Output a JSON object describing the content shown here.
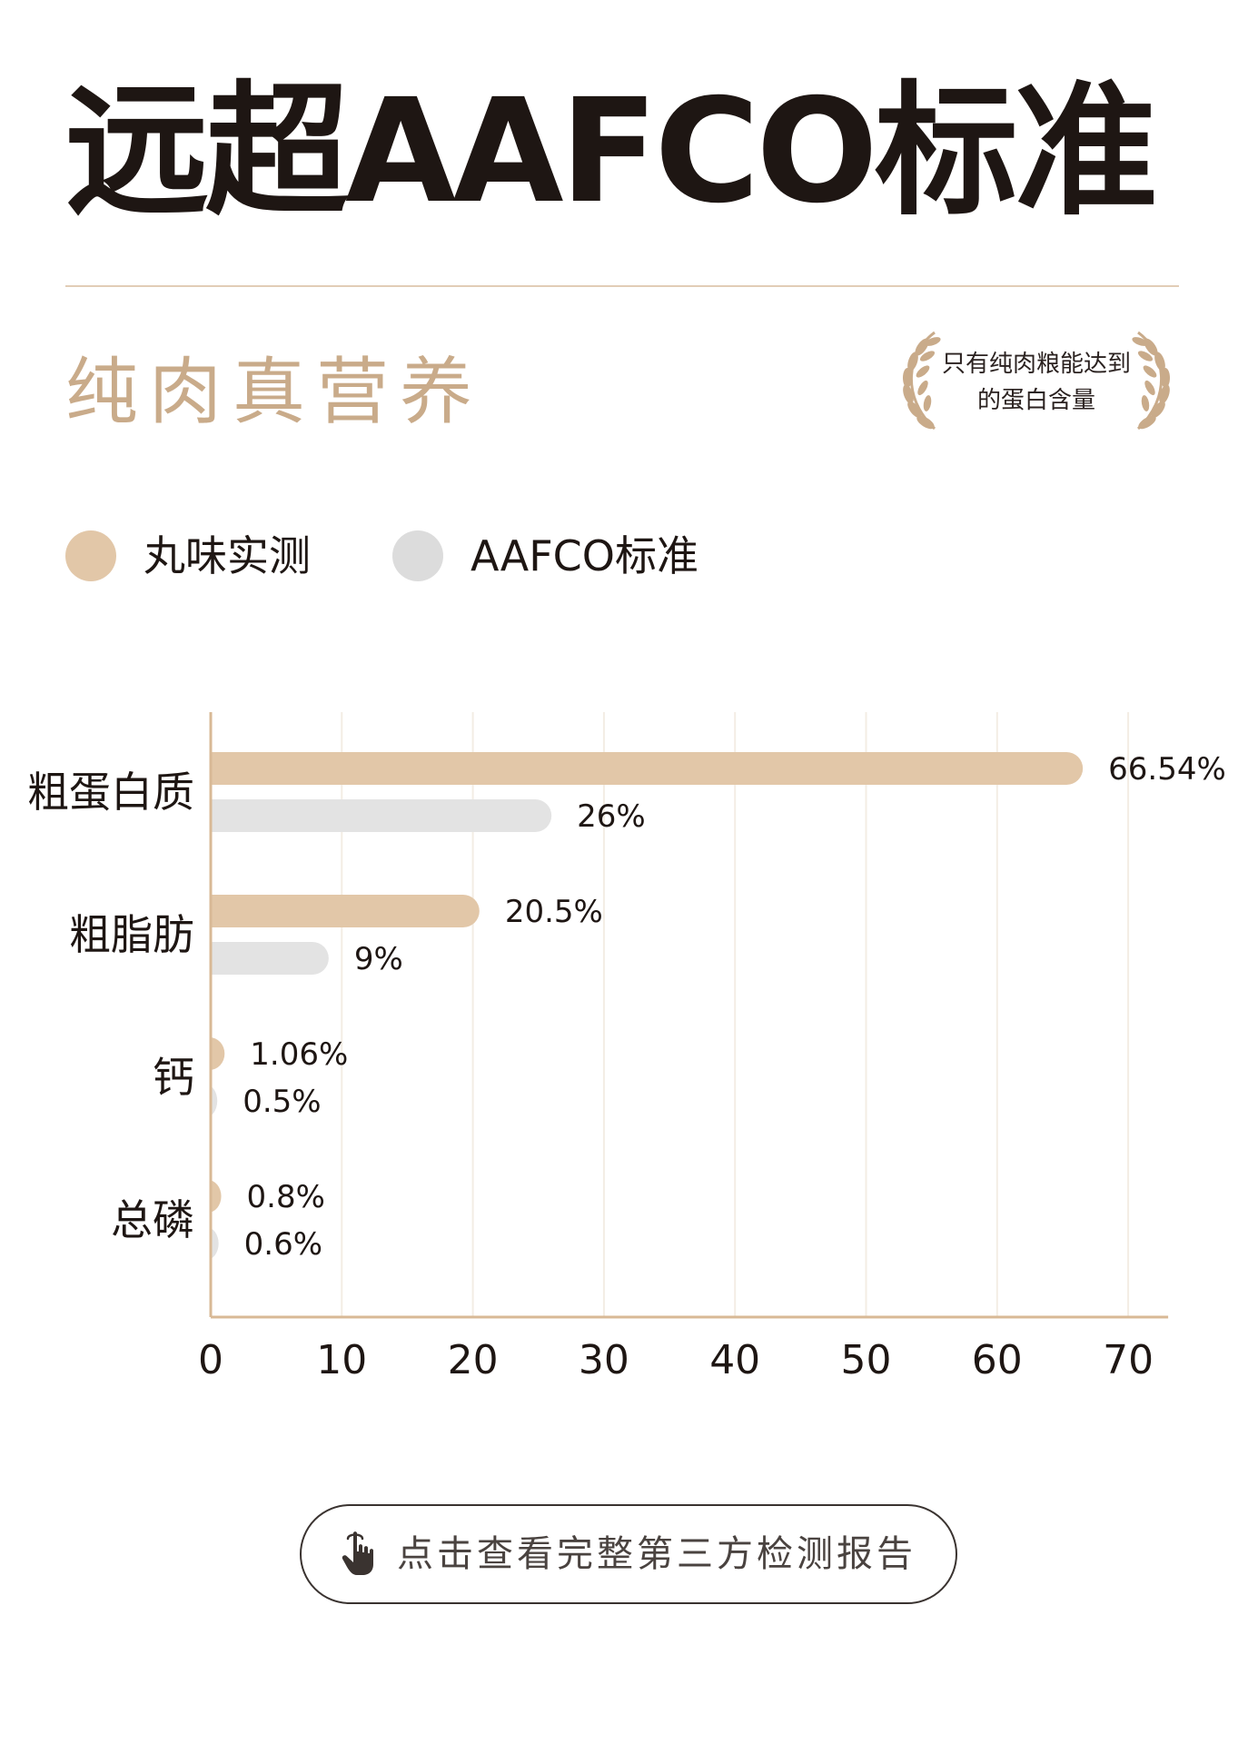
{
  "header": {
    "title": "远超AAFCO标准",
    "subtitle": "纯肉真营养",
    "badge_line1": "只有纯肉粮能达到",
    "badge_line2": "的蛋白含量"
  },
  "legend": [
    {
      "label": "丸味实测",
      "color": "#e2c7a8"
    },
    {
      "label": "AAFCO标准",
      "color": "#dcdcdc"
    }
  ],
  "chart_data": {
    "type": "bar",
    "orientation": "horizontal",
    "categories": [
      "粗蛋白质",
      "粗脂肪",
      "钙",
      "总磷"
    ],
    "series": [
      {
        "name": "丸味实测",
        "values": [
          66.54,
          20.5,
          1.06,
          0.8
        ],
        "labels": [
          "66.54%",
          "20.5%",
          "1.06%",
          "0.8%"
        ],
        "color": "#e2c7a8"
      },
      {
        "name": "AAFCO标准",
        "values": [
          26,
          9,
          0.5,
          0.6
        ],
        "labels": [
          "26%",
          "9%",
          "0.5%",
          "0.6%"
        ],
        "color": "#e3e3e3"
      }
    ],
    "xlim": [
      0,
      70
    ],
    "xticks": [
      "0",
      "10",
      "20",
      "30",
      "40",
      "50",
      "60",
      "70"
    ],
    "grid": true,
    "axis_color": "#d8b996",
    "grid_color": "#f3ede4"
  },
  "cta": {
    "label": "点击查看完整第三方检测报告",
    "icon": "pointer-hand-icon"
  }
}
